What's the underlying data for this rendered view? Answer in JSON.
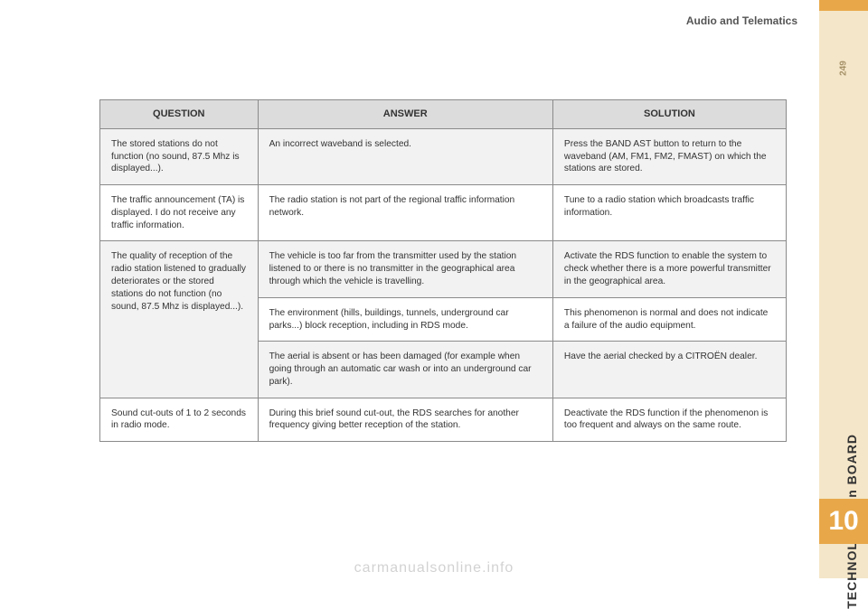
{
  "header": "Audio and Telematics",
  "page_number": "249",
  "section_label": "TECHNOLOGY on BOARD",
  "chapter_number": "10",
  "watermark": "carmanualsonline.info",
  "table": {
    "columns": [
      "QUESTION",
      "ANSWER",
      "SOLUTION"
    ],
    "rows": [
      {
        "q": "The stored stations do not function (no sound, 87.5 Mhz is displayed...).",
        "a": "An incorrect waveband is selected.",
        "s": "Press the BAND AST button to return to the waveband (AM, FM1, FM2, FMAST) on which the stations are stored."
      },
      {
        "q": "The traffic announcement (TA) is displayed. I do not receive any traffic information.",
        "a": "The radio station is not part of the regional traffic information network.",
        "s": "Tune to a radio station which broadcasts traffic information."
      },
      {
        "q": "The quality of reception of the radio station listened to gradually deteriorates or the stored stations do not function (no sound, 87.5 Mhz is displayed...).",
        "a1": "The vehicle is too far from the transmitter used by the station listened to or there is no transmitter in the geographical area through which the vehicle is travelling.",
        "s1": "Activate the RDS function to enable the system to check whether there is a more powerful transmitter in the geographical area.",
        "a2": "The environment (hills, buildings, tunnels, underground car parks...) block reception, including in RDS mode.",
        "s2": "This phenomenon is normal and does not indicate a failure of the audio equipment.",
        "a3": "The aerial is absent or has been damaged (for example when going through an automatic car wash or into an underground car park).",
        "s3": "Have the aerial checked by a CITROËN dealer."
      },
      {
        "q": "Sound cut-outs of 1 to 2 seconds in radio mode.",
        "a": "During this brief sound cut-out, the RDS searches for another frequency giving better reception of the station.",
        "s": "Deactivate the RDS function if the phenomenon is too frequent and always on the same route."
      }
    ]
  }
}
